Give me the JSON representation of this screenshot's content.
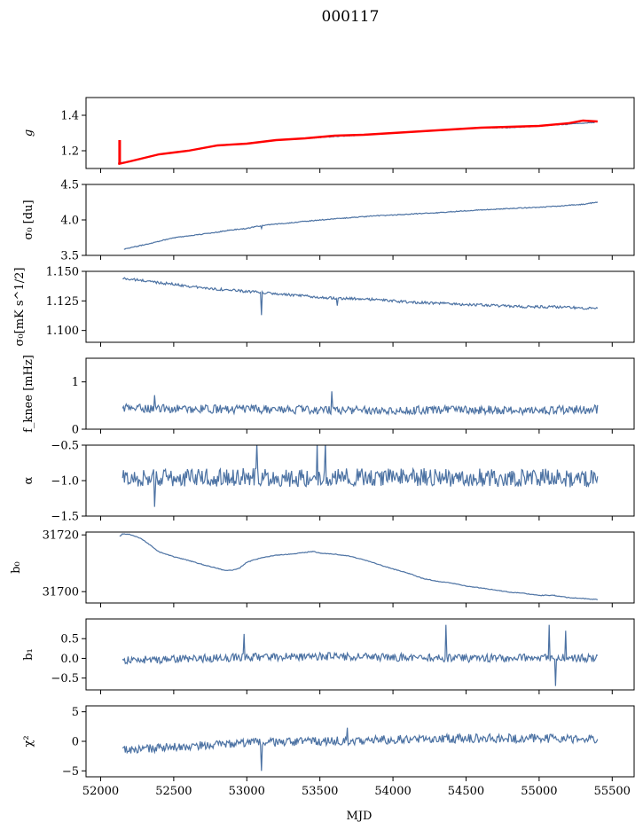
{
  "figure": {
    "title": "000117",
    "xlabel": "MJD",
    "xlim": [
      51900,
      55650
    ],
    "xticks": [
      52000,
      52500,
      53000,
      53500,
      54000,
      54500,
      55000,
      55500
    ],
    "line_color": "#4c72a3",
    "fit_color": "#ff0000"
  },
  "chart_data": [
    {
      "type": "line",
      "id": "g",
      "ylabel": "g",
      "ylabel_style": "italic",
      "ylim": [
        1.1,
        1.5
      ],
      "yticks": [
        1.2,
        1.4
      ],
      "ytick_labels": [
        "1.2",
        "1.4"
      ],
      "x": [
        52120,
        52200,
        52300,
        52400,
        52500,
        52600,
        52800,
        53000,
        53200,
        53400,
        53600,
        53800,
        54000,
        54200,
        54400,
        54600,
        54800,
        55000,
        55200,
        55380
      ],
      "values": [
        1.13,
        1.14,
        1.16,
        1.18,
        1.19,
        1.2,
        1.23,
        1.24,
        1.26,
        1.27,
        1.28,
        1.29,
        1.3,
        1.31,
        1.32,
        1.33,
        1.33,
        1.34,
        1.35,
        1.36
      ],
      "fit": {
        "color": "#ff0000",
        "x": [
          52120,
          52200,
          52300,
          52400,
          52500,
          52600,
          52800,
          53000,
          53200,
          53400,
          53600,
          53800,
          54000,
          54200,
          54400,
          54600,
          54800,
          55000,
          55200,
          55300,
          55400
        ],
        "values": [
          1.125,
          1.14,
          1.16,
          1.18,
          1.19,
          1.2,
          1.23,
          1.24,
          1.26,
          1.27,
          1.285,
          1.29,
          1.3,
          1.31,
          1.32,
          1.33,
          1.335,
          1.34,
          1.355,
          1.37,
          1.365
        ],
        "spike": {
          "x": 52130,
          "values": [
            1.125,
            1.26
          ]
        }
      }
    },
    {
      "type": "line",
      "id": "sigma0_du",
      "ylabel": "σ₀ [du]",
      "ylim": [
        3.5,
        4.5
      ],
      "yticks": [
        3.5,
        4.0,
        4.5
      ],
      "ytick_labels": [
        "3.5",
        "4.0",
        "4.5"
      ],
      "x": [
        52160,
        52300,
        52400,
        52500,
        52700,
        52900,
        53000,
        53100,
        53300,
        53500,
        53700,
        53900,
        54100,
        54300,
        54500,
        54700,
        54900,
        55100,
        55300,
        55400
      ],
      "values": [
        3.59,
        3.65,
        3.7,
        3.75,
        3.8,
        3.86,
        3.88,
        3.92,
        3.96,
        4.0,
        4.03,
        4.06,
        4.08,
        4.1,
        4.13,
        4.15,
        4.17,
        4.19,
        4.22,
        4.25
      ]
    },
    {
      "type": "line",
      "id": "sigma0_mks",
      "ylabel": "σ₀[mK s^1/2]",
      "ylim": [
        1.09,
        1.15
      ],
      "yticks": [
        1.1,
        1.125,
        1.15
      ],
      "ytick_labels": [
        "1.100",
        "1.125",
        "1.150"
      ],
      "x": [
        52150,
        52300,
        52500,
        52700,
        52900,
        53100,
        53300,
        53500,
        53700,
        53900,
        54100,
        54300,
        54500,
        54700,
        54900,
        55100,
        55300,
        55400
      ],
      "values": [
        1.144,
        1.142,
        1.139,
        1.136,
        1.134,
        1.132,
        1.13,
        1.128,
        1.127,
        1.126,
        1.124,
        1.123,
        1.122,
        1.121,
        1.12,
        1.12,
        1.119,
        1.119
      ]
    },
    {
      "type": "line",
      "id": "fknee",
      "ylabel": "f_knee [mHz]",
      "ylim": [
        0,
        1.5
      ],
      "yticks": [
        0,
        1
      ],
      "ytick_labels": [
        "0",
        "1"
      ],
      "x": [
        52150,
        52500,
        53000,
        53500,
        54000,
        54500,
        55000,
        55400
      ],
      "values": [
        0.45,
        0.43,
        0.42,
        0.41,
        0.4,
        0.41,
        0.4,
        0.42
      ]
    },
    {
      "type": "line",
      "id": "alpha",
      "ylabel": "α",
      "ylim": [
        -1.5,
        -0.5
      ],
      "yticks": [
        -1.5,
        -1.0,
        -0.5
      ],
      "ytick_labels": [
        "−1.5",
        "−1.0",
        "−0.5"
      ],
      "x": [
        52150,
        52500,
        53000,
        53500,
        54000,
        54500,
        55000,
        55400
      ],
      "values": [
        -0.97,
        -0.96,
        -0.95,
        -0.96,
        -0.95,
        -0.96,
        -0.96,
        -0.97
      ]
    },
    {
      "type": "line",
      "id": "b0",
      "ylabel": "b₀",
      "ylim": [
        31696,
        31721
      ],
      "yticks": [
        31700,
        31720
      ],
      "ytick_labels": [
        "31700",
        "31720"
      ],
      "x": [
        52130,
        52150,
        52200,
        52280,
        52350,
        52400,
        52500,
        52600,
        52700,
        52800,
        52850,
        52900,
        52950,
        53000,
        53100,
        53200,
        53300,
        53400,
        53450,
        53500,
        53600,
        53700,
        53800,
        53900,
        54000,
        54100,
        54200,
        54300,
        54400,
        54500,
        54600,
        54700,
        54800,
        54900,
        55000,
        55100,
        55200,
        55300,
        55400
      ],
      "values": [
        31719.5,
        31720.3,
        31720.2,
        31718.6,
        31716,
        31714,
        31712.3,
        31711,
        31709.5,
        31708.2,
        31707.5,
        31707.6,
        31708.3,
        31710.3,
        31712,
        31712.8,
        31713.2,
        31713.8,
        31714.2,
        31713.6,
        31713.2,
        31712.5,
        31711.3,
        31709.6,
        31708,
        31706.6,
        31704.7,
        31703.7,
        31703,
        31702,
        31701.3,
        31700.6,
        31699.8,
        31699.4,
        31698.7,
        31698.7,
        31697.9,
        31697.6,
        31697.2
      ]
    },
    {
      "type": "line",
      "id": "b1",
      "ylabel": "b₁",
      "ylim": [
        -0.8,
        1.0
      ],
      "yticks": [
        -0.5,
        0.0,
        0.5
      ],
      "ytick_labels": [
        "−0.5",
        "0.0",
        "0.5"
      ],
      "x": [
        52150,
        52500,
        53000,
        53500,
        54000,
        54500,
        55000,
        55400
      ],
      "values": [
        -0.05,
        -0.02,
        0.03,
        0.05,
        0.03,
        0.0,
        0.02,
        0.0
      ]
    },
    {
      "type": "line",
      "id": "chi2",
      "ylabel": "χ²",
      "ylim": [
        -6,
        6
      ],
      "yticks": [
        -5,
        0,
        5
      ],
      "ytick_labels": [
        "−5",
        "0",
        "5"
      ],
      "x": [
        52150,
        52500,
        53000,
        53500,
        54000,
        54500,
        55000,
        55400
      ],
      "values": [
        -1.5,
        -1.0,
        -0.3,
        0.0,
        0.3,
        0.5,
        0.5,
        0.4
      ]
    }
  ]
}
